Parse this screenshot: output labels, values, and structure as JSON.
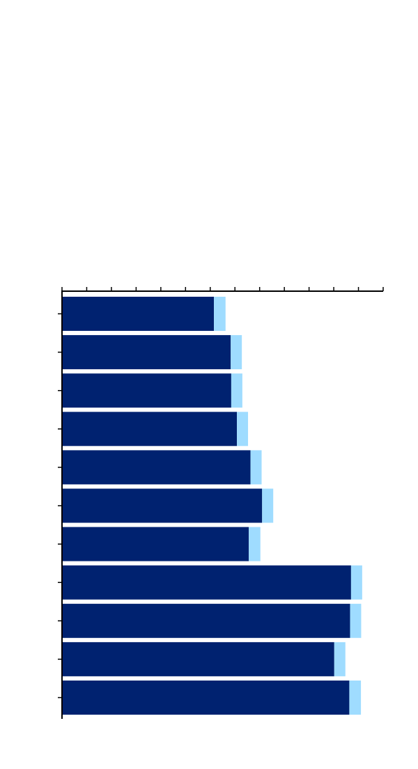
{
  "chart_data": {
    "type": "bar",
    "orientation": "horizontal",
    "stacked": true,
    "categories": [
      "",
      "",
      "",
      "",
      "",
      "",
      "",
      "",
      "",
      "",
      ""
    ],
    "series": [
      {
        "color": "#002270",
        "values": [
          6.15,
          6.83,
          6.85,
          7.08,
          7.63,
          8.1,
          7.56,
          11.7,
          11.66,
          11.02,
          11.63
        ]
      },
      {
        "color": "#9fdcff",
        "values": [
          0.47,
          0.45,
          0.45,
          0.45,
          0.45,
          0.45,
          0.47,
          0.45,
          0.45,
          0.45,
          0.47
        ]
      }
    ],
    "xlim": [
      0,
      13
    ],
    "x_major_tick_step": 1,
    "x_axis_position": "top",
    "grid": false,
    "legend": "none"
  }
}
